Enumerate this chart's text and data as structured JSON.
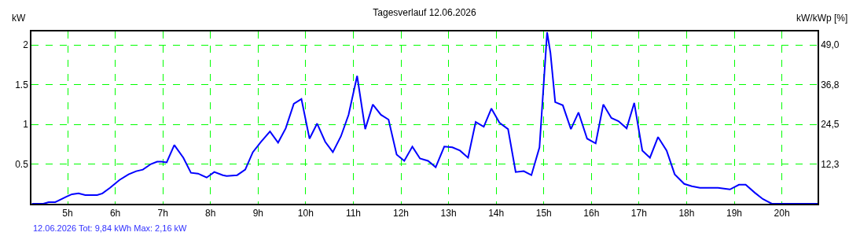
{
  "chart_data": {
    "type": "line",
    "title": "Tagesverlauf 12.06.2026",
    "ylabel": "kW",
    "y2label": "kW/kWp [%]",
    "x": [
      4.25,
      4.49,
      4.6,
      4.74,
      4.98,
      5.09,
      5.23,
      5.37,
      5.62,
      5.73,
      5.89,
      6.09,
      6.28,
      6.44,
      6.58,
      6.75,
      6.88,
      6.97,
      7.08,
      7.24,
      7.43,
      7.59,
      7.74,
      7.92,
      8.08,
      8.26,
      8.34,
      8.56,
      8.73,
      8.89,
      9.06,
      9.25,
      9.42,
      9.58,
      9.75,
      9.91,
      10.08,
      10.24,
      10.41,
      10.57,
      10.74,
      10.9,
      11.08,
      11.25,
      11.41,
      11.58,
      11.74,
      11.91,
      12.07,
      12.24,
      12.4,
      12.57,
      12.73,
      12.91,
      13.08,
      13.24,
      13.41,
      13.57,
      13.74,
      13.9,
      14.07,
      14.25,
      14.41,
      14.58,
      14.74,
      14.91,
      15.07,
      15.14,
      15.24,
      15.4,
      15.57,
      15.73,
      15.91,
      16.09,
      16.25,
      16.42,
      16.57,
      16.74,
      16.9,
      17.07,
      17.23,
      17.4,
      17.58,
      17.75,
      17.95,
      18.11,
      18.28,
      18.66,
      18.91,
      19.1,
      19.24,
      19.43,
      19.6,
      19.79,
      20.75
    ],
    "series": [
      {
        "color": "#0000ff",
        "values": [
          0,
          0,
          0.02,
          0.02,
          0.09,
          0.12,
          0.13,
          0.11,
          0.11,
          0.13,
          0.2,
          0.3,
          0.37,
          0.41,
          0.43,
          0.5,
          0.53,
          0.53,
          0.52,
          0.74,
          0.58,
          0.39,
          0.38,
          0.33,
          0.4,
          0.36,
          0.35,
          0.36,
          0.43,
          0.65,
          0.78,
          0.91,
          0.77,
          0.95,
          1.26,
          1.32,
          0.82,
          1.01,
          0.78,
          0.65,
          0.85,
          1.12,
          1.61,
          0.94,
          1.25,
          1.12,
          1.06,
          0.62,
          0.54,
          0.72,
          0.57,
          0.54,
          0.46,
          0.72,
          0.71,
          0.67,
          0.58,
          1.03,
          0.97,
          1.2,
          1.02,
          0.94,
          0.4,
          0.41,
          0.36,
          0.71,
          2.16,
          1.9,
          1.28,
          1.24,
          0.94,
          1.15,
          0.82,
          0.76,
          1.25,
          1.08,
          1.04,
          0.95,
          1.27,
          0.67,
          0.58,
          0.84,
          0.67,
          0.37,
          0.25,
          0.22,
          0.2,
          0.2,
          0.18,
          0.24,
          0.24,
          0.14,
          0.06,
          0,
          0
        ]
      }
    ],
    "xlim": [
      4.24,
      20.75
    ],
    "xticks": [
      {
        "value": 5,
        "label": "5h"
      },
      {
        "value": 6,
        "label": "6h"
      },
      {
        "value": 7,
        "label": "7h"
      },
      {
        "value": 8,
        "label": "8h"
      },
      {
        "value": 9,
        "label": "9h"
      },
      {
        "value": 10,
        "label": "10h"
      },
      {
        "value": 11,
        "label": "11h"
      },
      {
        "value": 12,
        "label": "12h"
      },
      {
        "value": 13,
        "label": "13h"
      },
      {
        "value": 14,
        "label": "14h"
      },
      {
        "value": 15,
        "label": "15h"
      },
      {
        "value": 16,
        "label": "16h"
      },
      {
        "value": 17,
        "label": "17h"
      },
      {
        "value": 18,
        "label": "18h"
      },
      {
        "value": 19,
        "label": "19h"
      },
      {
        "value": 20,
        "label": "20h"
      }
    ],
    "ylim": [
      0,
      2.17
    ],
    "yticks": [
      0.5,
      1,
      1.5,
      2
    ],
    "y2lim": [
      0,
      53.2
    ],
    "y2ticks": [
      {
        "value": 12.25,
        "label": "12,3"
      },
      {
        "value": 24.5,
        "label": "24,5"
      },
      {
        "value": 36.75,
        "label": "36,8"
      },
      {
        "value": 49.0,
        "label": "49,0"
      }
    ],
    "annotations": [
      "12.06.2026 Tot: 9,84 kWh Max: 2,16 kW"
    ],
    "grid": true,
    "line_style": "solid",
    "marker": "none"
  }
}
